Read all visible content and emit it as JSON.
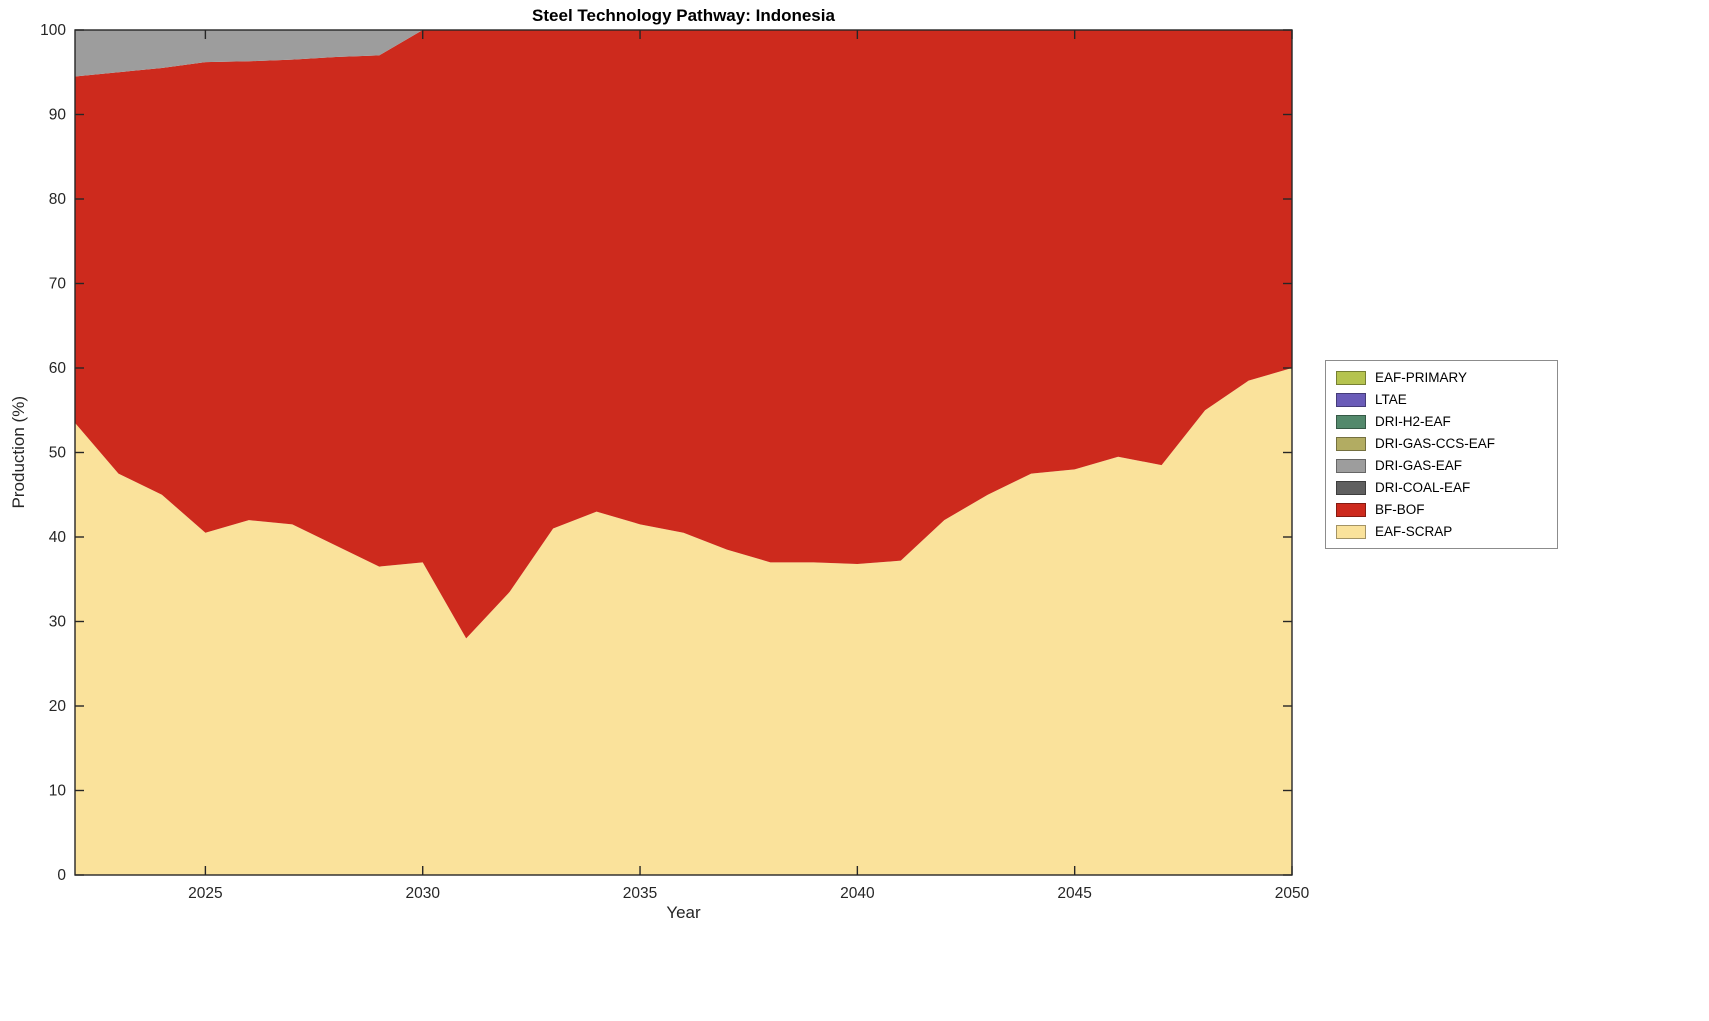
{
  "chart_data": {
    "type": "area",
    "stacked": true,
    "title": "Steel Technology Pathway: Indonesia",
    "xlabel": "Year",
    "ylabel": "Production (%)",
    "xlim": [
      2022,
      2050
    ],
    "ylim": [
      0,
      100
    ],
    "xticks": [
      2025,
      2030,
      2035,
      2040,
      2045,
      2050
    ],
    "yticks": [
      0,
      10,
      20,
      30,
      40,
      50,
      60,
      70,
      80,
      90,
      100
    ],
    "grid": false,
    "legend_position": "right-outside",
    "years": [
      2022,
      2023,
      2024,
      2025,
      2026,
      2027,
      2028,
      2029,
      2030,
      2031,
      2032,
      2033,
      2034,
      2035,
      2036,
      2037,
      2038,
      2039,
      2040,
      2041,
      2042,
      2043,
      2044,
      2045,
      2046,
      2047,
      2048,
      2049,
      2050
    ],
    "series": [
      {
        "name": "EAF-SCRAP",
        "color": "#FAE29B",
        "values": [
          53.5,
          47.5,
          45,
          40.5,
          42,
          41.5,
          39,
          36.5,
          37,
          28,
          33.5,
          41,
          43,
          41.5,
          40.5,
          38.5,
          37,
          37,
          36.8,
          37.2,
          42,
          45,
          47.5,
          48,
          49.5,
          48.5,
          55,
          58.5,
          60
        ]
      },
      {
        "name": "BF-BOF",
        "color": "#CD2A1D",
        "values": [
          41,
          47.5,
          50.5,
          55.7,
          54.3,
          55,
          57.8,
          60.5,
          63,
          72,
          66.5,
          59,
          57,
          58.5,
          59.5,
          61.5,
          63,
          63,
          63.2,
          62.8,
          58,
          55,
          52.5,
          52,
          50.5,
          51.5,
          45,
          41.5,
          40
        ]
      },
      {
        "name": "DRI-COAL-EAF",
        "color": "#5F5F5F",
        "values": [
          0,
          0,
          0,
          0,
          0,
          0,
          0,
          0,
          0,
          0,
          0,
          0,
          0,
          0,
          0,
          0,
          0,
          0,
          0,
          0,
          0,
          0,
          0,
          0,
          0,
          0,
          0,
          0,
          0
        ]
      },
      {
        "name": "DRI-GAS-EAF",
        "color": "#9D9D9D",
        "values": [
          5.5,
          5,
          4.5,
          3.8,
          3.7,
          3.5,
          3.2,
          3,
          0,
          0,
          0,
          0,
          0,
          0,
          0,
          0,
          0,
          0,
          0,
          0,
          0,
          0,
          0,
          0,
          0,
          0,
          0,
          0,
          0
        ]
      },
      {
        "name": "DRI-GAS-CCS-EAF",
        "color": "#B2AC62",
        "values": [
          0,
          0,
          0,
          0,
          0,
          0,
          0,
          0,
          0,
          0,
          0,
          0,
          0,
          0,
          0,
          0,
          0,
          0,
          0,
          0,
          0,
          0,
          0,
          0,
          0,
          0,
          0,
          0,
          0
        ]
      },
      {
        "name": "DRI-H2-EAF",
        "color": "#53896C",
        "values": [
          0,
          0,
          0,
          0,
          0,
          0,
          0,
          0,
          0,
          0,
          0,
          0,
          0,
          0,
          0,
          0,
          0,
          0,
          0,
          0,
          0,
          0,
          0,
          0,
          0,
          0,
          0,
          0,
          0
        ]
      },
      {
        "name": "LTAE",
        "color": "#6A5CB8",
        "values": [
          0,
          0,
          0,
          0,
          0,
          0,
          0,
          0,
          0,
          0,
          0,
          0,
          0,
          0,
          0,
          0,
          0,
          0,
          0,
          0,
          0,
          0,
          0,
          0,
          0,
          0,
          0,
          0,
          0
        ]
      },
      {
        "name": "EAF-PRIMARY",
        "color": "#B5C34F",
        "values": [
          0,
          0,
          0,
          0,
          0,
          0,
          0,
          0,
          0,
          0,
          0,
          0,
          0,
          0,
          0,
          0,
          0,
          0,
          0,
          0,
          0,
          0,
          0,
          0,
          0,
          0,
          0,
          0,
          0
        ]
      }
    ],
    "legend": [
      "EAF-PRIMARY",
      "LTAE",
      "DRI-H2-EAF",
      "DRI-GAS-CCS-EAF",
      "DRI-GAS-EAF",
      "DRI-COAL-EAF",
      "BF-BOF",
      "EAF-SCRAP"
    ],
    "axis_color": "#262626"
  }
}
